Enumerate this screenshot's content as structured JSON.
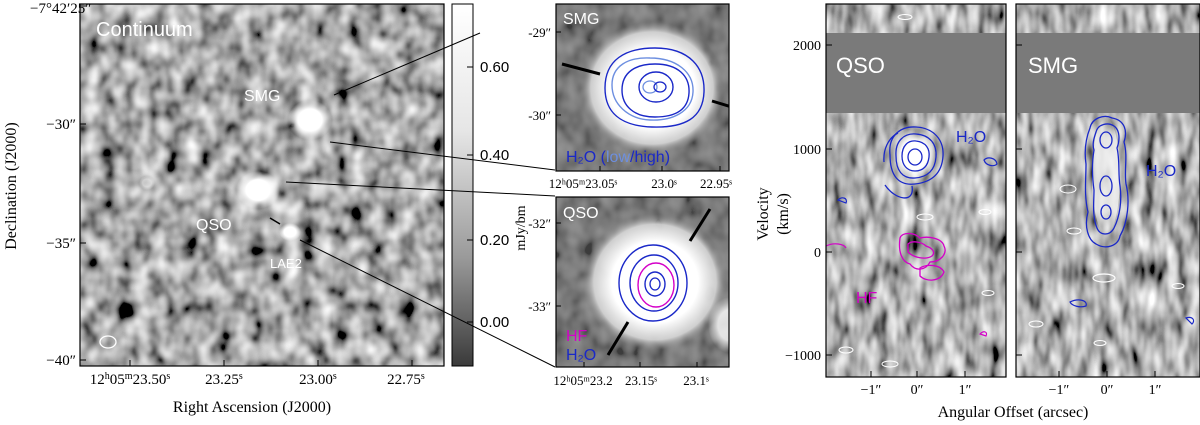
{
  "colors": {
    "page_background": "#ffffff",
    "noise_dark": "#3f3f3f",
    "noise_light": "#9a9a9a",
    "source_white": "#ffffff",
    "blank_velocity_band": "#7a7a7a",
    "contour_h2o": "#1a28c8",
    "contour_h2o_low": "#6d8fe0",
    "contour_hf": "#d400c8",
    "contour_negative": "#ffffff",
    "axis": "#000000"
  },
  "main_map": {
    "title": "Continuum",
    "dec_top_label": "−7°42′25″",
    "dec_ticks": [
      "−30″",
      "−35″",
      "−40″"
    ],
    "ra_ticks_html": [
      "12<tspan font-size='10' baseline-shift='super'>h</tspan>05<tspan font-size='10' baseline-shift='super'>m</tspan>23.50<tspan font-size='10' baseline-shift='super'>s</tspan>",
      "23.25<tspan font-size='10' baseline-shift='super'>s</tspan>",
      "23.00<tspan font-size='10' baseline-shift='super'>s</tspan>",
      "22.75<tspan font-size='10' baseline-shift='super'>s</tspan>"
    ],
    "ylabel": "Declination (J2000)",
    "xlabel": "Right Ascension (J2000)",
    "labels": {
      "smg": "SMG",
      "qso": "QSO",
      "lae2": "LAE2"
    }
  },
  "colorbar": {
    "ticks": [
      "0.60",
      "0.40",
      "0.20",
      "0.00"
    ],
    "label": "mJy/bm"
  },
  "zoom_smg": {
    "title": "SMG",
    "dec_ticks": [
      "-29″",
      "-30″"
    ],
    "ra_ticks": [
      "12ʰ05ᵐ23.05ˢ",
      "23.0ˢ",
      "22.95ˢ"
    ],
    "legend_prefix": "H₂O (",
    "legend_low": "low",
    "legend_sep": "/",
    "legend_high": "high",
    "legend_suffix": ")"
  },
  "zoom_qso": {
    "title": "QSO",
    "dec_ticks": [
      "-32″",
      "-33″"
    ],
    "ra_ticks": [
      "12ʰ05ᵐ23.2",
      "23.15ˢ",
      "23.1ˢ"
    ],
    "legend_hf": "HF",
    "legend_h2o": "H₂O"
  },
  "pv_qso": {
    "title": "QSO",
    "h2o_label": "H₂O",
    "hf_label": "HF",
    "y_ticks": [
      "2000",
      "1000",
      "0",
      "−1000"
    ],
    "x_ticks": [
      "−1″",
      "0″",
      "1″"
    ],
    "ylabel_line1": "Velocity",
    "ylabel_line2": "(km/s)"
  },
  "pv_smg": {
    "title": "SMG",
    "h2o_label": "H₂O",
    "x_ticks": [
      "−1″",
      "0″",
      "1″"
    ]
  },
  "pv_xlabel": "Angular Offset (arcsec)"
}
